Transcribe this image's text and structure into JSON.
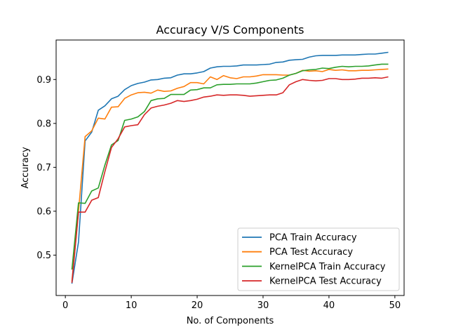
{
  "chart_data": {
    "type": "line",
    "title": "Accuracy V/S Components",
    "xlabel": "No. of Components",
    "ylabel": "Accuracy",
    "xlim": [
      -1.4,
      51.4
    ],
    "ylim": [
      0.408,
      0.99
    ],
    "xticks": [
      0,
      10,
      20,
      30,
      40,
      50
    ],
    "yticks": [
      0.5,
      0.6,
      0.7,
      0.8,
      0.9
    ],
    "xtick_labels": [
      "0",
      "10",
      "20",
      "30",
      "40",
      "50"
    ],
    "ytick_labels": [
      "0.5",
      "0.6",
      "0.7",
      "0.8",
      "0.9"
    ],
    "legend_position": "lower-right",
    "x": [
      1,
      2,
      3,
      4,
      5,
      6,
      7,
      8,
      9,
      10,
      11,
      12,
      13,
      14,
      15,
      16,
      17,
      18,
      19,
      20,
      21,
      22,
      23,
      24,
      25,
      26,
      27,
      28,
      29,
      30,
      31,
      32,
      33,
      34,
      35,
      36,
      37,
      38,
      39,
      40,
      41,
      42,
      43,
      44,
      45,
      46,
      47,
      48,
      49
    ],
    "series": [
      {
        "name": "PCA Train Accuracy",
        "color": "#1f77b4",
        "values": [
          0.435,
          0.53,
          0.76,
          0.78,
          0.83,
          0.84,
          0.856,
          0.862,
          0.877,
          0.886,
          0.891,
          0.894,
          0.899,
          0.9,
          0.903,
          0.904,
          0.91,
          0.913,
          0.913,
          0.915,
          0.918,
          0.926,
          0.929,
          0.93,
          0.93,
          0.931,
          0.933,
          0.933,
          0.933,
          0.934,
          0.935,
          0.939,
          0.94,
          0.944,
          0.945,
          0.946,
          0.951,
          0.954,
          0.955,
          0.955,
          0.955,
          0.956,
          0.956,
          0.956,
          0.957,
          0.958,
          0.958,
          0.96,
          0.962
        ]
      },
      {
        "name": "PCA Test Accuracy",
        "color": "#ff7f0e",
        "values": [
          0.44,
          0.6,
          0.77,
          0.783,
          0.812,
          0.81,
          0.837,
          0.838,
          0.857,
          0.865,
          0.87,
          0.871,
          0.869,
          0.876,
          0.873,
          0.874,
          0.88,
          0.884,
          0.893,
          0.893,
          0.89,
          0.906,
          0.9,
          0.909,
          0.904,
          0.902,
          0.906,
          0.906,
          0.908,
          0.911,
          0.911,
          0.911,
          0.91,
          0.91,
          0.914,
          0.921,
          0.919,
          0.92,
          0.918,
          0.923,
          0.921,
          0.922,
          0.92,
          0.92,
          0.921,
          0.921,
          0.922,
          0.923,
          0.924
        ]
      },
      {
        "name": "KernelPCA Train Accuracy",
        "color": "#2ca02c",
        "values": [
          0.467,
          0.619,
          0.618,
          0.646,
          0.653,
          0.705,
          0.751,
          0.761,
          0.807,
          0.81,
          0.815,
          0.827,
          0.852,
          0.856,
          0.857,
          0.866,
          0.866,
          0.866,
          0.876,
          0.877,
          0.881,
          0.881,
          0.888,
          0.889,
          0.889,
          0.89,
          0.89,
          0.89,
          0.892,
          0.895,
          0.898,
          0.899,
          0.903,
          0.91,
          0.914,
          0.92,
          0.922,
          0.923,
          0.926,
          0.925,
          0.928,
          0.93,
          0.929,
          0.93,
          0.93,
          0.931,
          0.933,
          0.935,
          0.935
        ]
      },
      {
        "name": "KernelPCA Test Accuracy",
        "color": "#d62728",
        "values": [
          0.437,
          0.598,
          0.598,
          0.625,
          0.631,
          0.69,
          0.745,
          0.765,
          0.792,
          0.795,
          0.797,
          0.82,
          0.835,
          0.839,
          0.842,
          0.846,
          0.852,
          0.85,
          0.852,
          0.855,
          0.86,
          0.862,
          0.865,
          0.864,
          0.865,
          0.865,
          0.864,
          0.862,
          0.863,
          0.864,
          0.865,
          0.865,
          0.87,
          0.888,
          0.895,
          0.9,
          0.898,
          0.897,
          0.898,
          0.902,
          0.902,
          0.9,
          0.9,
          0.901,
          0.903,
          0.903,
          0.904,
          0.903,
          0.906
        ]
      }
    ]
  }
}
